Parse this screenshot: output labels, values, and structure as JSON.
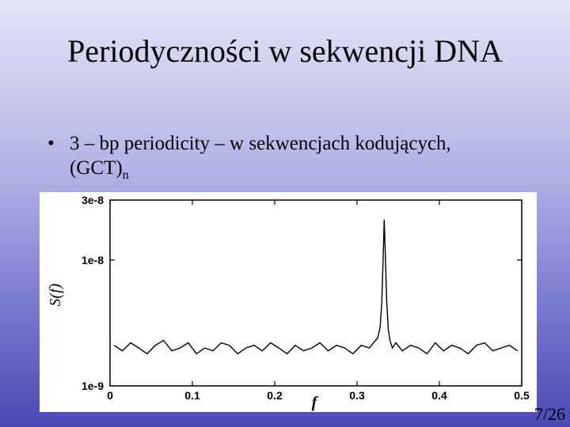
{
  "slide": {
    "title": "Periodyczności w sekwencji DNA",
    "bullet_symbol": "•",
    "bullet_text": "3 – bp periodicity – w sekwencjach kodujących, (GCT)",
    "bullet_subscript": "n",
    "page_number": "7/26"
  },
  "chart_data": {
    "type": "line",
    "title": "",
    "xlabel": "f",
    "ylabel": "S(f)",
    "xlim": [
      0,
      0.5
    ],
    "ylim": [
      1e-09,
      3e-08
    ],
    "yscale": "log",
    "grid": false,
    "x_ticks": [
      "0",
      "0.1",
      "0.2",
      "0.3",
      "0.4",
      "0.5"
    ],
    "y_ticks": [
      "3e-8",
      "1e-8",
      "1e-9"
    ],
    "series": [
      {
        "x": [
          0.005,
          0.015,
          0.025,
          0.035,
          0.045,
          0.055,
          0.065,
          0.075,
          0.085,
          0.095,
          0.105,
          0.115,
          0.125,
          0.135,
          0.145,
          0.155,
          0.165,
          0.175,
          0.185,
          0.195,
          0.205,
          0.215,
          0.225,
          0.235,
          0.245,
          0.255,
          0.265,
          0.275,
          0.285,
          0.295,
          0.305,
          0.315,
          0.32,
          0.325,
          0.328,
          0.33,
          0.332,
          0.333,
          0.334,
          0.336,
          0.338,
          0.34,
          0.343,
          0.347,
          0.355,
          0.365,
          0.375,
          0.385,
          0.395,
          0.405,
          0.415,
          0.425,
          0.435,
          0.445,
          0.455,
          0.465,
          0.475,
          0.485,
          0.495
        ],
        "y": [
          2.1e-09,
          1.9e-09,
          2.2e-09,
          2e-09,
          1.8e-09,
          2.1e-09,
          2.3e-09,
          1.9e-09,
          2e-09,
          2.2e-09,
          1.8e-09,
          2e-09,
          1.9e-09,
          2.2e-09,
          2.1e-09,
          1.8e-09,
          2e-09,
          2.1e-09,
          1.9e-09,
          2.2e-09,
          2e-09,
          1.8e-09,
          2.1e-09,
          1.9e-09,
          2e-09,
          2.2e-09,
          1.9e-09,
          2.1e-09,
          2e-09,
          1.8e-09,
          2.1e-09,
          2e-09,
          2.2e-09,
          2.4e-09,
          2.9e-09,
          4.5e-09,
          1.2e-08,
          2.1e-08,
          1.3e-08,
          4.8e-09,
          2.8e-09,
          2.3e-09,
          2e-09,
          2.2e-09,
          1.9e-09,
          2.1e-09,
          2e-09,
          1.8e-09,
          2.2e-09,
          1.9e-09,
          2.1e-09,
          2e-09,
          1.8e-09,
          2.1e-09,
          2.2e-09,
          1.9e-09,
          2e-09,
          2.1e-09,
          1.9e-09
        ]
      }
    ]
  }
}
